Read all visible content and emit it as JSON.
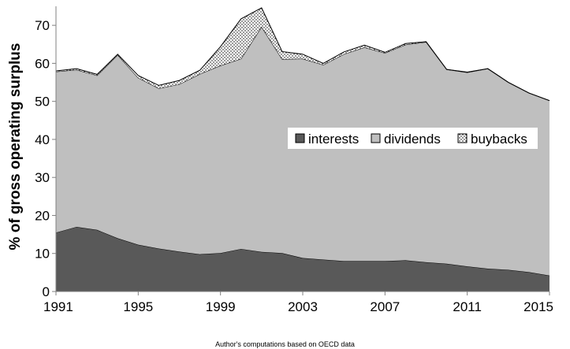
{
  "chart_data": {
    "type": "area",
    "stacked": true,
    "x": [
      1991,
      1992,
      1993,
      1994,
      1995,
      1996,
      1997,
      1998,
      1999,
      2000,
      2001,
      2002,
      2003,
      2004,
      2005,
      2006,
      2007,
      2008,
      2009,
      2010,
      2011,
      2012,
      2013,
      2014,
      2015
    ],
    "series": [
      {
        "name": "interests",
        "color": "#595959",
        "pattern": "solid",
        "values": [
          15.5,
          17.0,
          16.2,
          14.0,
          12.3,
          11.3,
          10.5,
          9.8,
          10.1,
          11.2,
          10.4,
          10.1,
          8.8,
          8.4,
          8.0,
          8.0,
          8.0,
          8.2,
          7.7,
          7.3,
          6.6,
          6.0,
          5.7,
          5.1,
          4.2
        ]
      },
      {
        "name": "dividends",
        "color": "#bfbfbf",
        "pattern": "solid",
        "values": [
          42.3,
          41.3,
          40.6,
          48.2,
          43.9,
          42.1,
          44.0,
          47.4,
          49.3,
          50.0,
          59.2,
          51.0,
          52.4,
          51.2,
          54.4,
          56.2,
          54.7,
          56.7,
          57.9,
          51.1,
          51.0,
          52.6,
          49.3,
          47.1,
          46.0
        ]
      },
      {
        "name": "buybacks",
        "color": "#ffffff",
        "pattern": "dotted",
        "values": [
          0.2,
          0.3,
          0.3,
          0.2,
          0.6,
          0.8,
          1.0,
          1.0,
          5.0,
          10.5,
          5.0,
          2.0,
          1.2,
          0.4,
          0.6,
          0.6,
          0.2,
          0.3,
          0.1,
          0.0,
          0.1,
          0.0,
          0.0,
          0.0,
          0.0
        ]
      }
    ],
    "ylabel": "% of gross operating surplus",
    "xlabel": "",
    "ylim": [
      0,
      75
    ],
    "yticks": [
      0,
      10,
      20,
      30,
      40,
      50,
      60,
      70
    ],
    "xticks": [
      1991,
      1995,
      1999,
      2003,
      2007,
      2011,
      2015
    ],
    "grid": false,
    "legend_position": "center-right"
  },
  "caption": "Author's computations based on OECD data"
}
